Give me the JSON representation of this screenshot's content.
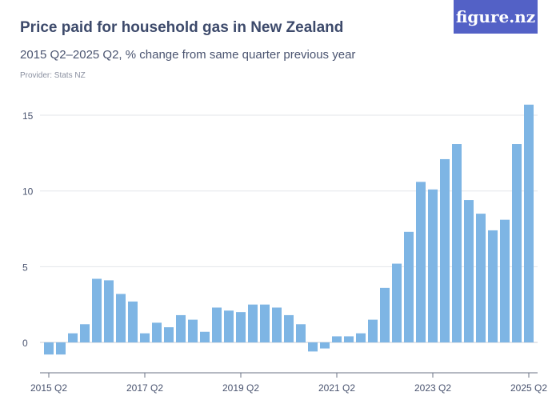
{
  "header": {
    "title": "Price paid for household gas in New Zealand",
    "subtitle": "2015 Q2–2025 Q2, % change from same quarter previous year",
    "provider": "Provider: Stats NZ",
    "logo": "figure.nz"
  },
  "colors": {
    "bar": "#7eb5e4",
    "logo_bg": "#5361c6",
    "text": "#3d4a6b"
  },
  "chart_data": {
    "type": "bar",
    "title": "Price paid for household gas in New Zealand",
    "xlabel": "",
    "ylabel": "",
    "ylim": [
      -2,
      16
    ],
    "yticks": [
      0,
      5,
      10,
      15
    ],
    "grid": true,
    "xtick_labels": [
      "2015 Q2",
      "2017 Q2",
      "2019 Q2",
      "2021 Q2",
      "2023 Q2",
      "2025 Q2"
    ],
    "categories": [
      "2015 Q2",
      "2015 Q3",
      "2015 Q4",
      "2016 Q1",
      "2016 Q2",
      "2016 Q3",
      "2016 Q4",
      "2017 Q1",
      "2017 Q2",
      "2017 Q3",
      "2017 Q4",
      "2018 Q1",
      "2018 Q2",
      "2018 Q3",
      "2018 Q4",
      "2019 Q1",
      "2019 Q2",
      "2019 Q3",
      "2019 Q4",
      "2020 Q1",
      "2020 Q2",
      "2020 Q3",
      "2020 Q4",
      "2021 Q1",
      "2021 Q2",
      "2021 Q3",
      "2021 Q4",
      "2022 Q1",
      "2022 Q2",
      "2022 Q3",
      "2022 Q4",
      "2023 Q1",
      "2023 Q2",
      "2023 Q3",
      "2023 Q4",
      "2024 Q1",
      "2024 Q2",
      "2024 Q3",
      "2024 Q4",
      "2025 Q1",
      "2025 Q2"
    ],
    "values": [
      -0.8,
      -0.8,
      0.6,
      1.2,
      4.2,
      4.1,
      3.2,
      2.7,
      0.6,
      1.3,
      1.0,
      1.8,
      1.5,
      0.7,
      2.3,
      2.1,
      2.0,
      2.5,
      2.5,
      2.3,
      1.8,
      1.2,
      -0.6,
      -0.4,
      0.4,
      0.4,
      0.6,
      1.5,
      3.6,
      5.2,
      7.3,
      10.6,
      10.1,
      12.1,
      13.1,
      9.4,
      8.5,
      7.4,
      8.1,
      13.1,
      15.7
    ]
  }
}
